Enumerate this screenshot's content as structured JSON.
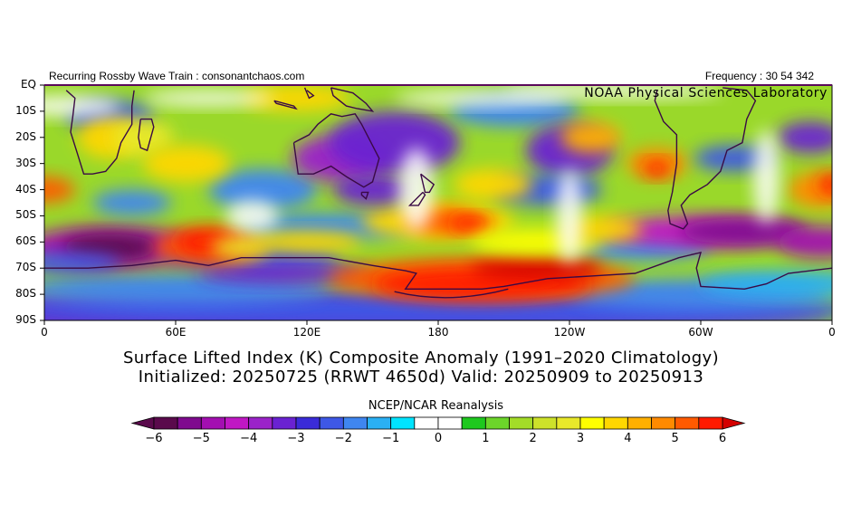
{
  "header": {
    "left": "Recurring Rossby Wave Train : consonantchaos.com",
    "right": "Frequency : 30 54 342",
    "lab": "NOAA Physical Sciences Laboratory"
  },
  "title": {
    "line1": "Surface Lifted Index (K) Composite Anomaly (1991–2020 Climatology)",
    "line2": "Initialized: 20250725 (RRWT 4650d) Valid: 20250909 to 20250913"
  },
  "subtitle": "NCEP/NCAR Reanalysis",
  "axes": {
    "y_ticks": [
      "EQ",
      "10S",
      "20S",
      "30S",
      "40S",
      "50S",
      "60S",
      "70S",
      "80S",
      "90S"
    ],
    "x_ticks": [
      "0",
      "60E",
      "120E",
      "180",
      "120W",
      "60W",
      "0"
    ]
  },
  "colorbar": {
    "labels": [
      "−6",
      "−5",
      "−4",
      "−3",
      "−2",
      "−1",
      "0",
      "1",
      "2",
      "3",
      "4",
      "5",
      "6"
    ],
    "colors": [
      "#5a0a4c",
      "#7f0a8e",
      "#a30fb1",
      "#c018c4",
      "#9b23c9",
      "#6a22d2",
      "#3a2bd8",
      "#3e58e6",
      "#3f86f0",
      "#2ab0f4",
      "#00e4ff",
      "#ffffff",
      "#ffffff",
      "#1ec81e",
      "#6cd52a",
      "#a3dc28",
      "#cde22a",
      "#e8e82a",
      "#ffff00",
      "#ffd700",
      "#ffb000",
      "#ff8a00",
      "#ff5a00",
      "#ff1a00"
    ],
    "end_colors": {
      "low": "#5a0a4c",
      "high": "#d40000"
    }
  },
  "map": {
    "extent": {
      "lon": [
        0,
        360
      ],
      "lat": [
        0,
        -90
      ]
    },
    "background": "#ffffff"
  }
}
